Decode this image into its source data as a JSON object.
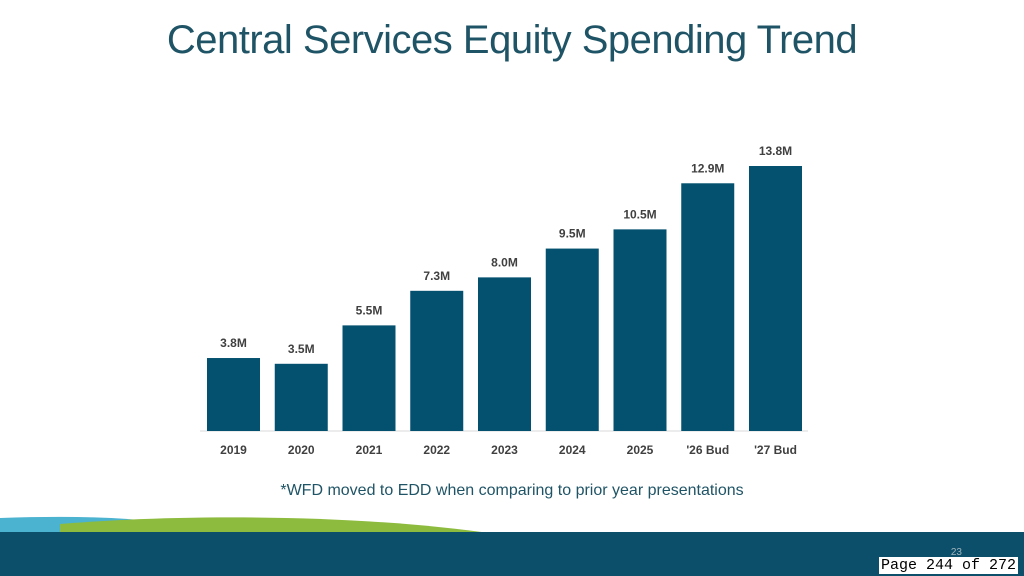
{
  "slide": {
    "title": "Central Services Equity Spending Trend",
    "footnote": "*WFD moved to EDD when comparing to prior year presentations",
    "page_number": "23",
    "page_stamp": "Page 244 of 272"
  },
  "colors": {
    "bar": "#03506f",
    "title": "#1f5466",
    "footer_dark": "#0c4f6a",
    "footer_light_blue": "#4bb3d0",
    "footer_green": "#8dbb3e"
  },
  "chart_data": {
    "type": "bar",
    "title": "",
    "xlabel": "",
    "ylabel": "",
    "categories": [
      "2019",
      "2020",
      "2021",
      "2022",
      "2023",
      "2024",
      "2025",
      "'26 Bud",
      "'27 Bud"
    ],
    "values": [
      3.8,
      3.5,
      5.5,
      7.3,
      8.0,
      9.5,
      10.5,
      12.9,
      13.8
    ],
    "data_labels": [
      "3.8M",
      "3.5M",
      "5.5M",
      "7.3M",
      "8.0M",
      "9.5M",
      "10.5M",
      "12.9M",
      "13.8M"
    ],
    "ylim": [
      0,
      14
    ],
    "grid": false,
    "legend": "none"
  }
}
